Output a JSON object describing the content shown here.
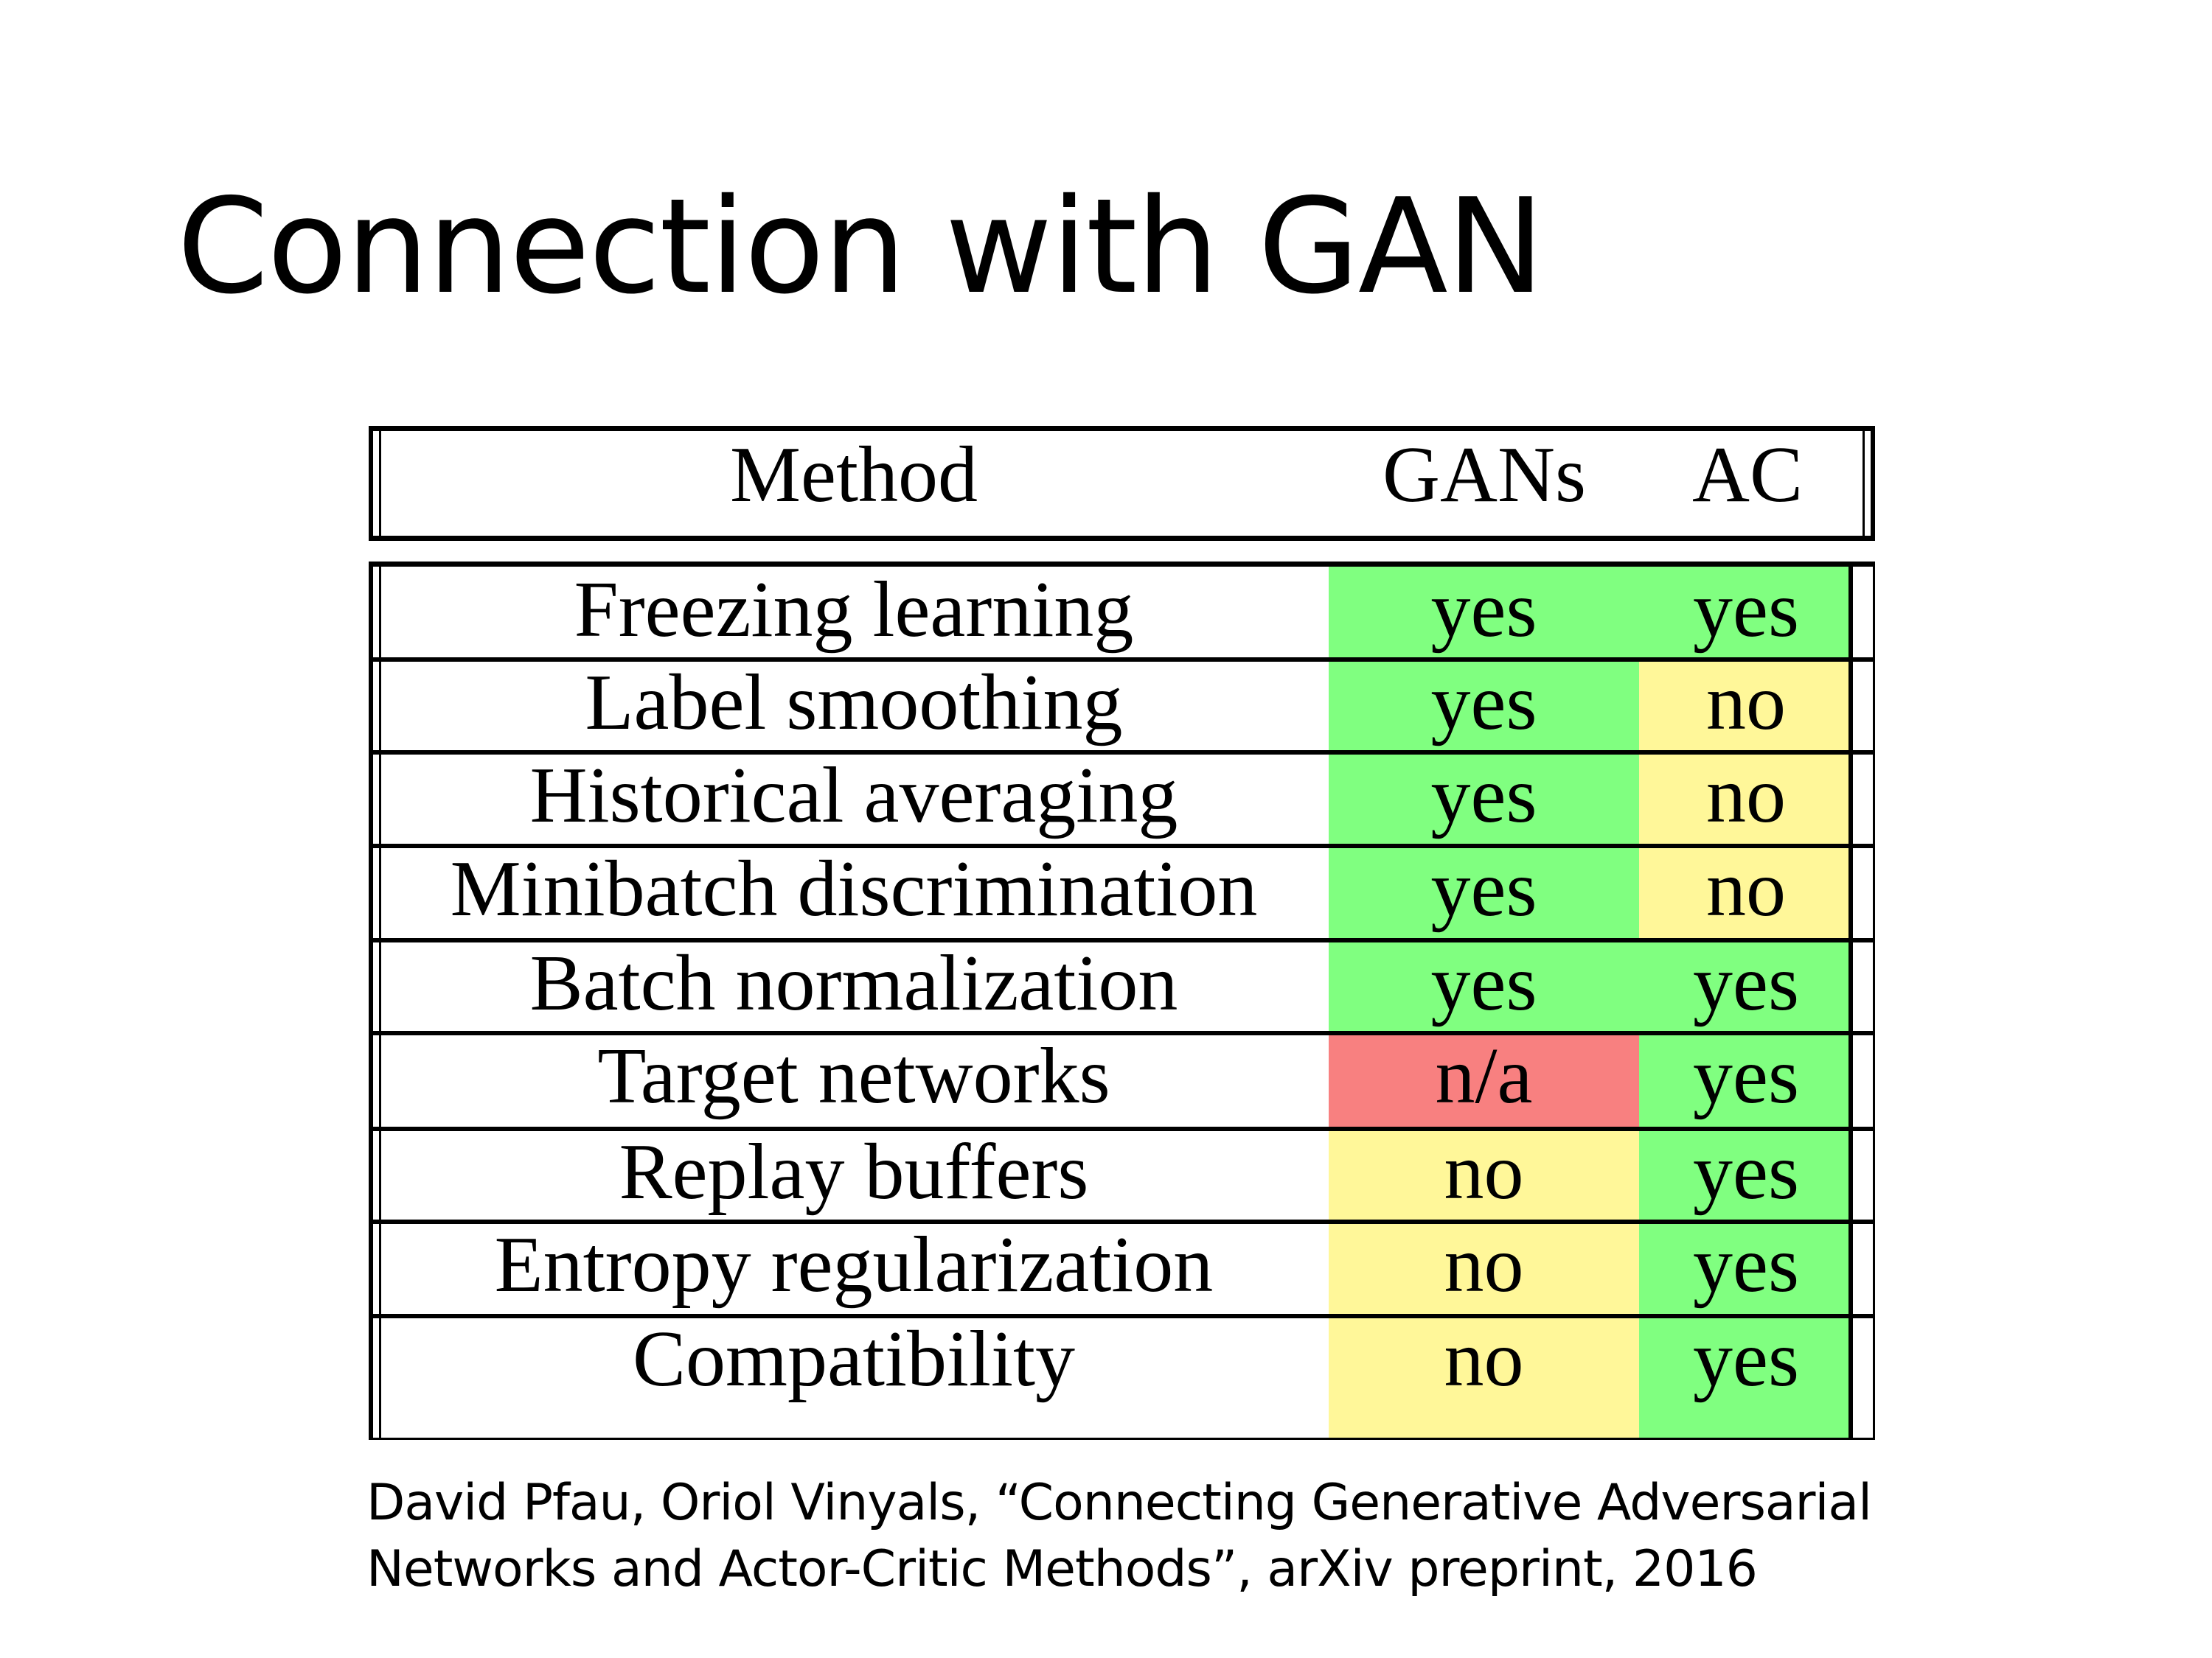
{
  "slide": {
    "title": "Connection with GAN",
    "table": {
      "headers": {
        "method": "Method",
        "gans": "GANs",
        "ac": "AC"
      },
      "colors": {
        "yes": "#80ff80",
        "no": "#fff799",
        "n/a": "#f88080"
      },
      "rows": [
        {
          "method": "Freezing learning",
          "gans": "yes",
          "ac": "yes"
        },
        {
          "method": "Label smoothing",
          "gans": "yes",
          "ac": "no"
        },
        {
          "method": "Historical averaging",
          "gans": "yes",
          "ac": "no"
        },
        {
          "method": "Minibatch discrimination",
          "gans": "yes",
          "ac": "no"
        },
        {
          "method": "Batch normalization",
          "gans": "yes",
          "ac": "yes"
        },
        {
          "method": "Target networks",
          "gans": "n/a",
          "ac": "yes"
        },
        {
          "method": "Replay buffers",
          "gans": "no",
          "ac": "yes"
        },
        {
          "method": "Entropy regularization",
          "gans": "no",
          "ac": "yes"
        },
        {
          "method": "Compatibility",
          "gans": "no",
          "ac": "yes"
        }
      ]
    },
    "citation": {
      "line1": "David Pfau, Oriol Vinyals, “Connecting Generative Adversarial",
      "line2": "Networks and Actor-Critic Methods”, arXiv preprint, 2016"
    }
  }
}
